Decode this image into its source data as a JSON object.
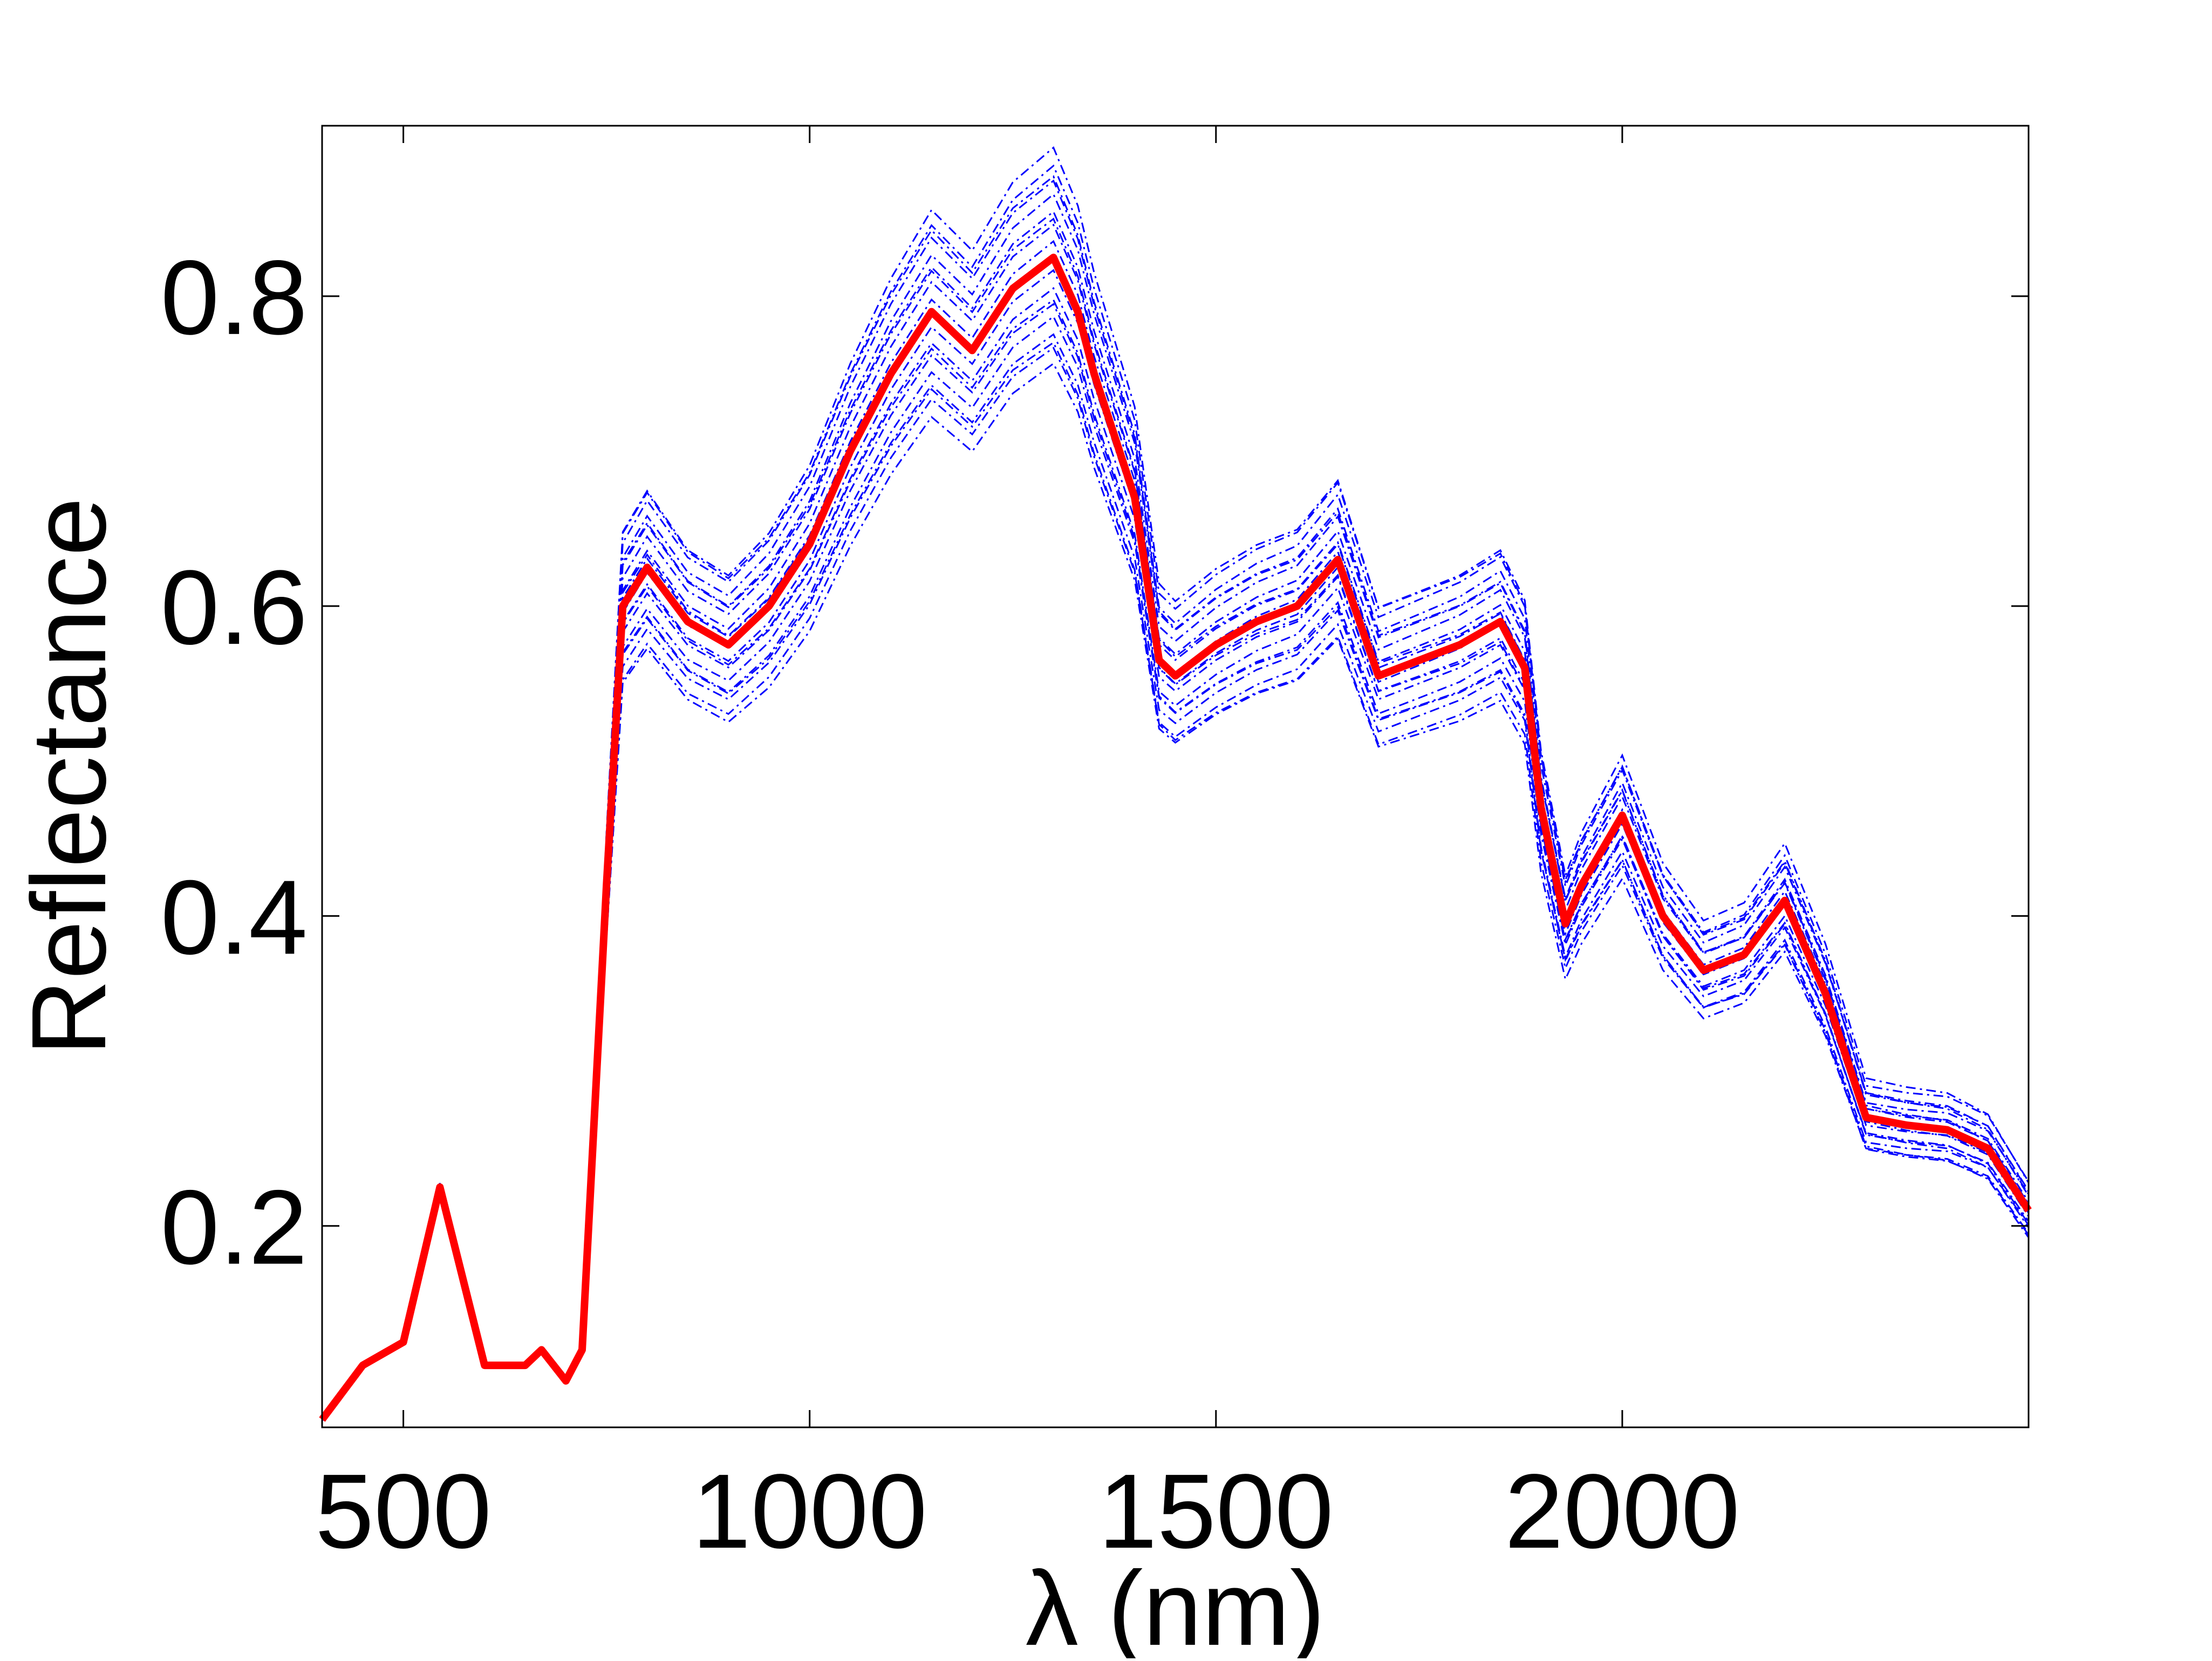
{
  "chart_data": {
    "type": "line",
    "xlabel": "λ (nm)",
    "ylabel": "Reflectance",
    "xlim": [
      400,
      2500
    ],
    "ylim": [
      0.07,
      0.91
    ],
    "x_ticks": [
      500,
      1000,
      1500,
      2000
    ],
    "y_ticks": [
      0.2,
      0.4,
      0.6,
      0.8
    ],
    "x_tick_labels": [
      "500",
      "1000",
      "1500",
      "2000"
    ],
    "y_tick_labels": [
      "0.2",
      "0.4",
      "0.6",
      "0.8"
    ],
    "grid": false,
    "legend": "none",
    "colors": {
      "mean": "#ff0000",
      "samples": "#0000ff"
    },
    "mean_series": {
      "style": "solid-thick",
      "x": [
        400,
        450,
        500,
        545,
        600,
        650,
        670,
        700,
        720,
        750,
        770,
        800,
        850,
        900,
        950,
        1000,
        1050,
        1100,
        1150,
        1200,
        1250,
        1300,
        1330,
        1350,
        1400,
        1430,
        1450,
        1500,
        1550,
        1600,
        1650,
        1700,
        1750,
        1800,
        1850,
        1880,
        1900,
        1930,
        1950,
        2000,
        2050,
        2100,
        2150,
        2200,
        2250,
        2300,
        2350,
        2400,
        2450,
        2500
      ],
      "y": [
        0.075,
        0.11,
        0.125,
        0.225,
        0.11,
        0.11,
        0.12,
        0.1,
        0.12,
        0.42,
        0.6,
        0.625,
        0.59,
        0.575,
        0.6,
        0.64,
        0.7,
        0.75,
        0.79,
        0.765,
        0.805,
        0.825,
        0.79,
        0.75,
        0.67,
        0.565,
        0.555,
        0.575,
        0.59,
        0.6,
        0.63,
        0.555,
        0.565,
        0.575,
        0.59,
        0.56,
        0.47,
        0.395,
        0.42,
        0.465,
        0.4,
        0.365,
        0.375,
        0.41,
        0.35,
        0.27,
        0.265,
        0.262,
        0.25,
        0.21
      ]
    },
    "sample_series": {
      "style": "dash-dot-thin",
      "count": 20,
      "spread": 0.09
    }
  }
}
